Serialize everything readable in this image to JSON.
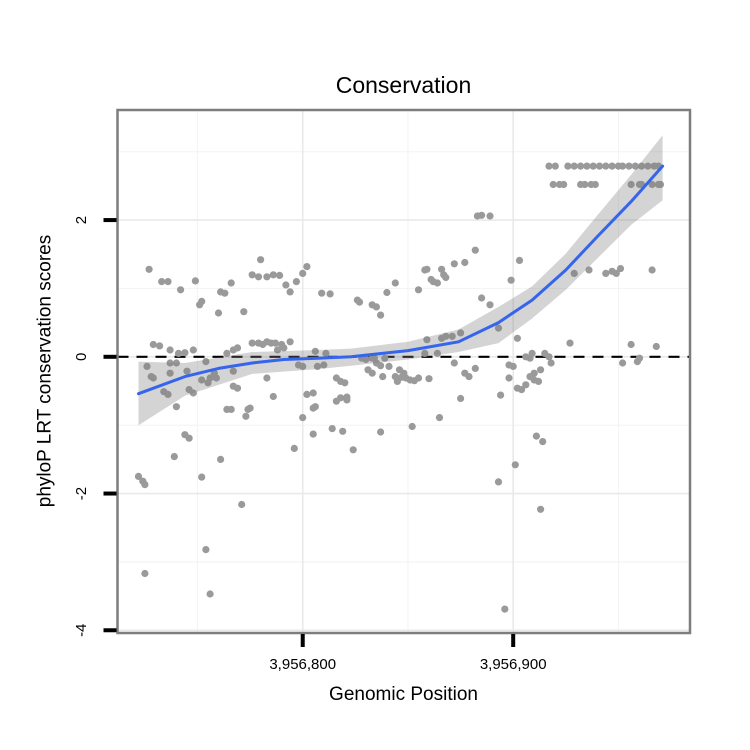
{
  "chart_data": {
    "type": "scatter",
    "title": "Conservation",
    "xlabel": "Genomic Position",
    "ylabel": "phyloP LRT conservation scores",
    "axes": {
      "xlim": [
        3956712,
        3956984
      ],
      "ylim": [
        -4.04,
        3.61
      ],
      "x_ticks": [
        {
          "value": 3956800,
          "label": "3,956,800"
        },
        {
          "value": 3956900,
          "label": "3,956,900"
        }
      ],
      "y_ticks": [
        {
          "value": 2,
          "label": "2"
        },
        {
          "value": 0,
          "label": "0"
        },
        {
          "value": -2,
          "label": "-2"
        },
        {
          "value": -4,
          "label": "-4"
        }
      ],
      "x_minor": [
        3956750,
        3956850,
        3956950
      ],
      "y_minor": [
        3,
        1,
        -1,
        -3
      ],
      "grid": true,
      "legend": "none"
    },
    "hline": {
      "y": 0,
      "style": "dashed"
    },
    "smooth_line": [
      [
        3956722,
        -0.54
      ],
      [
        3956744,
        -0.29
      ],
      [
        3956760,
        -0.17
      ],
      [
        3956776,
        -0.09
      ],
      [
        3956791,
        -0.04
      ],
      [
        3956807,
        -0.02
      ],
      [
        3956823,
        0.0
      ],
      [
        3956850,
        0.09
      ],
      [
        3956874,
        0.22
      ],
      [
        3956893,
        0.5
      ],
      [
        3956909,
        0.83
      ],
      [
        3956925,
        1.27
      ],
      [
        3956940,
        1.76
      ],
      [
        3956956,
        2.27
      ],
      [
        3956971,
        2.79
      ]
    ],
    "ribbon": [
      [
        3956722,
        -1.0,
        -0.07
      ],
      [
        3956744,
        -0.57,
        -0.09
      ],
      [
        3956776,
        -0.25,
        0.07
      ],
      [
        3956807,
        -0.18,
        0.1
      ],
      [
        3956823,
        -0.13,
        0.12
      ],
      [
        3956850,
        -0.04,
        0.22
      ],
      [
        3956874,
        0.07,
        0.4
      ],
      [
        3956893,
        0.2,
        0.73
      ],
      [
        3956909,
        0.56,
        1.03
      ],
      [
        3956925,
        0.98,
        1.51
      ],
      [
        3956940,
        1.44,
        2.07
      ],
      [
        3956956,
        1.93,
        2.66
      ],
      [
        3956971,
        2.29,
        3.24
      ]
    ],
    "points": [
      [
        3956727,
        1.28
      ],
      [
        3956733,
        1.1
      ],
      [
        3956736,
        1.1
      ],
      [
        3956742,
        0.98
      ],
      [
        3956749,
        1.11
      ],
      [
        3956751,
        0.76
      ],
      [
        3956752,
        0.81
      ],
      [
        3956760,
        0.64
      ],
      [
        3956761,
        0.95
      ],
      [
        3956763,
        0.93
      ],
      [
        3956766,
        1.08
      ],
      [
        3956772,
        0.66
      ],
      [
        3956776,
        1.2
      ],
      [
        3956779,
        1.17
      ],
      [
        3956780,
        1.42
      ],
      [
        3956783,
        1.17
      ],
      [
        3956786,
        1.2
      ],
      [
        3956789,
        1.19
      ],
      [
        3956792,
        1.05
      ],
      [
        3956794,
        0.95
      ],
      [
        3956797,
        1.1
      ],
      [
        3956800,
        1.22
      ],
      [
        3956802,
        1.32
      ],
      [
        3956809,
        0.93
      ],
      [
        3956813,
        0.92
      ],
      [
        3956826,
        0.83
      ],
      [
        3956827,
        0.8
      ],
      [
        3956833,
        0.76
      ],
      [
        3956835,
        0.73
      ],
      [
        3956837,
        0.61
      ],
      [
        3956840,
        0.94
      ],
      [
        3956844,
        1.08
      ],
      [
        3956855,
        0.98
      ],
      [
        3956858,
        1.27
      ],
      [
        3956859,
        1.28
      ],
      [
        3956861,
        1.13
      ],
      [
        3956862,
        1.1
      ],
      [
        3956864,
        1.08
      ],
      [
        3956866,
        1.28
      ],
      [
        3956867,
        1.2
      ],
      [
        3956868,
        1.16
      ],
      [
        3956872,
        1.36
      ],
      [
        3956877,
        1.38
      ],
      [
        3956882,
        1.56
      ],
      [
        3956883,
        2.06
      ],
      [
        3956885,
        2.07
      ],
      [
        3956889,
        2.06
      ],
      [
        3956885,
        0.86
      ],
      [
        3956889,
        0.76
      ],
      [
        3956899,
        1.12
      ],
      [
        3956903,
        1.41
      ],
      [
        3956929,
        1.22
      ],
      [
        3956936,
        1.27
      ],
      [
        3956944,
        1.22
      ],
      [
        3956947,
        1.25
      ],
      [
        3956949,
        1.22
      ],
      [
        3956951,
        1.29
      ],
      [
        3956966,
        1.27
      ],
      [
        3956917,
        2.79
      ],
      [
        3956920,
        2.79
      ],
      [
        3956926,
        2.79
      ],
      [
        3956929,
        2.79
      ],
      [
        3956932,
        2.79
      ],
      [
        3956935,
        2.79
      ],
      [
        3956938,
        2.79
      ],
      [
        3956941,
        2.79
      ],
      [
        3956944,
        2.79
      ],
      [
        3956947,
        2.79
      ],
      [
        3956950,
        2.79
      ],
      [
        3956952,
        2.79
      ],
      [
        3956955,
        2.79
      ],
      [
        3956958,
        2.79
      ],
      [
        3956961,
        2.79
      ],
      [
        3956964,
        2.79
      ],
      [
        3956967,
        2.79
      ],
      [
        3956969,
        2.79
      ],
      [
        3956919,
        2.52
      ],
      [
        3956922,
        2.52
      ],
      [
        3956924,
        2.52
      ],
      [
        3956932,
        2.52
      ],
      [
        3956934,
        2.52
      ],
      [
        3956937,
        2.52
      ],
      [
        3956939,
        2.52
      ],
      [
        3956956,
        2.52
      ],
      [
        3956960,
        2.52
      ],
      [
        3956961,
        2.52
      ],
      [
        3956966,
        2.52
      ],
      [
        3956969,
        2.52
      ],
      [
        3956970,
        2.52
      ],
      [
        3956726,
        -0.14
      ],
      [
        3956728,
        -0.29
      ],
      [
        3956729,
        0.18
      ],
      [
        3956729,
        -0.31
      ],
      [
        3956732,
        0.16
      ],
      [
        3956737,
        0.1
      ],
      [
        3956737,
        -0.09
      ],
      [
        3956737,
        -0.24
      ],
      [
        3956740,
        -0.09
      ],
      [
        3956741,
        0.05
      ],
      [
        3956744,
        0.06
      ],
      [
        3956745,
        -0.21
      ],
      [
        3956748,
        0.1
      ],
      [
        3956752,
        -0.34
      ],
      [
        3956754,
        -0.07
      ],
      [
        3956755,
        -0.38
      ],
      [
        3956758,
        -0.24
      ],
      [
        3956764,
        0.05
      ],
      [
        3956767,
        0.1
      ],
      [
        3956767,
        -0.21
      ],
      [
        3956769,
        0.13
      ],
      [
        3956776,
        0.2
      ],
      [
        3956779,
        0.2
      ],
      [
        3956781,
        0.18
      ],
      [
        3956783,
        0.22
      ],
      [
        3956785,
        0.2
      ],
      [
        3956787,
        0.2
      ],
      [
        3956788,
        0.1
      ],
      [
        3956790,
        0.18
      ],
      [
        3956791,
        0.13
      ],
      [
        3956794,
        0.22
      ],
      [
        3956798,
        -0.12
      ],
      [
        3956800,
        -0.14
      ],
      [
        3956806,
        0.08
      ],
      [
        3956807,
        -0.14
      ],
      [
        3956810,
        -0.12
      ],
      [
        3956811,
        0.05
      ],
      [
        3956828,
        -0.02
      ],
      [
        3956830,
        -0.04
      ],
      [
        3956831,
        -0.19
      ],
      [
        3956833,
        -0.02
      ],
      [
        3956833,
        -0.24
      ],
      [
        3956834,
        -0.02
      ],
      [
        3956835,
        -0.09
      ],
      [
        3956837,
        -0.13
      ],
      [
        3956839,
        -0.02
      ],
      [
        3956841,
        -0.14
      ],
      [
        3956845,
        -0.36
      ],
      [
        3956846,
        -0.19
      ],
      [
        3956848,
        -0.24
      ],
      [
        3956858,
        0.05
      ],
      [
        3956859,
        0.25
      ],
      [
        3956864,
        0.05
      ],
      [
        3956866,
        0.27
      ],
      [
        3956868,
        0.3
      ],
      [
        3956871,
        0.3
      ],
      [
        3956872,
        -0.09
      ],
      [
        3956875,
        0.35
      ],
      [
        3956877,
        -0.24
      ],
      [
        3956882,
        -0.17
      ],
      [
        3956893,
        0.42
      ],
      [
        3956898,
        -0.12
      ],
      [
        3956900,
        -0.14
      ],
      [
        3956902,
        0.27
      ],
      [
        3956906,
        0.0
      ],
      [
        3956908,
        -0.02
      ],
      [
        3956909,
        0.05
      ],
      [
        3956910,
        -0.24
      ],
      [
        3956913,
        -0.19
      ],
      [
        3956915,
        0.05
      ],
      [
        3956917,
        0.0
      ],
      [
        3956918,
        -0.09
      ],
      [
        3956927,
        0.2
      ],
      [
        3956952,
        -0.09
      ],
      [
        3956956,
        0.18
      ],
      [
        3956959,
        -0.07
      ],
      [
        3956960,
        -0.02
      ],
      [
        3956968,
        0.15
      ],
      [
        3956734,
        -0.51
      ],
      [
        3956736,
        -0.55
      ],
      [
        3956740,
        -0.73
      ],
      [
        3956746,
        -0.48
      ],
      [
        3956748,
        -0.53
      ],
      [
        3956756,
        -0.31
      ],
      [
        3956759,
        -0.31
      ],
      [
        3956764,
        -0.77
      ],
      [
        3956766,
        -0.77
      ],
      [
        3956767,
        -0.43
      ],
      [
        3956769,
        -0.46
      ],
      [
        3956773,
        -0.87
      ],
      [
        3956774,
        -0.77
      ],
      [
        3956775,
        -0.75
      ],
      [
        3956783,
        -0.31
      ],
      [
        3956786,
        -0.58
      ],
      [
        3956800,
        -0.89
      ],
      [
        3956802,
        -0.55
      ],
      [
        3956805,
        -0.53
      ],
      [
        3956805,
        -0.75
      ],
      [
        3956806,
        -0.73
      ],
      [
        3956816,
        -0.65
      ],
      [
        3956816,
        -0.31
      ],
      [
        3956818,
        -0.6
      ],
      [
        3956818,
        -0.36
      ],
      [
        3956820,
        -0.38
      ],
      [
        3956821,
        -0.59
      ],
      [
        3956821,
        -0.63
      ],
      [
        3956838,
        -0.29
      ],
      [
        3956844,
        -0.29
      ],
      [
        3956847,
        -0.3
      ],
      [
        3956849,
        -0.31
      ],
      [
        3956851,
        -0.34
      ],
      [
        3956852,
        -1.02
      ],
      [
        3956853,
        -0.35
      ],
      [
        3956855,
        -0.31
      ],
      [
        3956860,
        -0.32
      ],
      [
        3956865,
        -0.89
      ],
      [
        3956875,
        -0.61
      ],
      [
        3956879,
        -0.29
      ],
      [
        3956722,
        -1.75
      ],
      [
        3956724,
        -1.82
      ],
      [
        3956725,
        -1.87
      ],
      [
        3956725,
        -3.17
      ],
      [
        3956739,
        -1.46
      ],
      [
        3956744,
        -1.14
      ],
      [
        3956746,
        -1.19
      ],
      [
        3956752,
        -1.76
      ],
      [
        3956754,
        -2.82
      ],
      [
        3956756,
        -3.47
      ],
      [
        3956761,
        -1.5
      ],
      [
        3956771,
        -2.16
      ],
      [
        3956796,
        -1.34
      ],
      [
        3956805,
        -1.13
      ],
      [
        3956814,
        -1.05
      ],
      [
        3956819,
        -1.09
      ],
      [
        3956824,
        -1.36
      ],
      [
        3956837,
        -1.1
      ],
      [
        3956893,
        -1.83
      ],
      [
        3956894,
        -0.56
      ],
      [
        3956896,
        -3.69
      ],
      [
        3956898,
        -0.31
      ],
      [
        3956901,
        -1.58
      ],
      [
        3956902,
        -0.46
      ],
      [
        3956904,
        -0.48
      ],
      [
        3956906,
        -0.41
      ],
      [
        3956908,
        -0.29
      ],
      [
        3956910,
        -0.34
      ],
      [
        3956911,
        -1.16
      ],
      [
        3956912,
        -0.36
      ],
      [
        3956913,
        -2.23
      ],
      [
        3956914,
        -1.24
      ]
    ]
  },
  "colors": {
    "point": "#9a9a9a",
    "smooth_line": "#3465ec",
    "ribbon": "rgba(125,125,125,0.33)",
    "grid_major": "#e9e9e9",
    "grid_minor": "#f4f4f4",
    "panel_border": "#7d7d7d",
    "hline": "#000000",
    "tick": "#000000",
    "text": "#000000",
    "background": "#ffffff"
  }
}
